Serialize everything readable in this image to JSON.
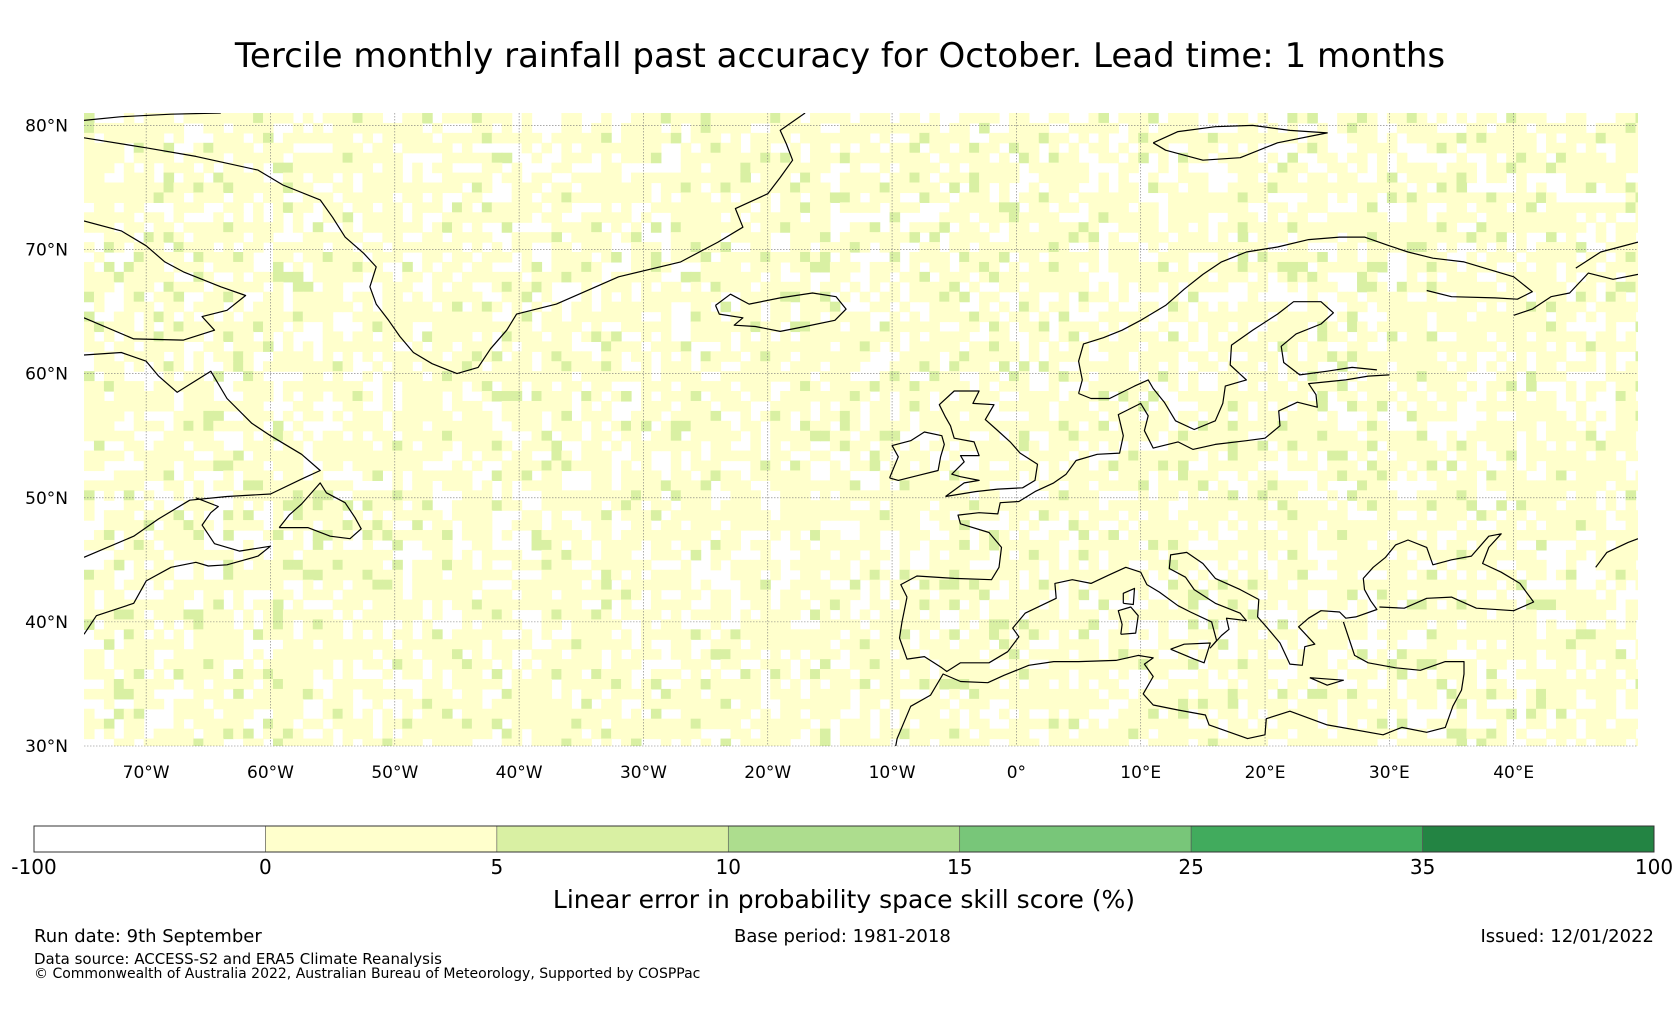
{
  "title": "Tercile monthly rainfall past accuracy for October. Lead time: 1 months",
  "map": {
    "lon_range": [
      -75,
      50
    ],
    "lat_range": [
      30,
      81
    ],
    "lat_ticks": [
      {
        "value": 80,
        "label": "80°N"
      },
      {
        "value": 70,
        "label": "70°N"
      },
      {
        "value": 60,
        "label": "60°N"
      },
      {
        "value": 50,
        "label": "50°N"
      },
      {
        "value": 40,
        "label": "40°N"
      },
      {
        "value": 30,
        "label": "30°N"
      }
    ],
    "lon_ticks": [
      {
        "value": -70,
        "label": "70°W"
      },
      {
        "value": -60,
        "label": "60°W"
      },
      {
        "value": -50,
        "label": "50°W"
      },
      {
        "value": -40,
        "label": "40°W"
      },
      {
        "value": -30,
        "label": "30°W"
      },
      {
        "value": -20,
        "label": "20°W"
      },
      {
        "value": -10,
        "label": "10°W"
      },
      {
        "value": 0,
        "label": "0°"
      },
      {
        "value": 10,
        "label": "10°E"
      },
      {
        "value": 20,
        "label": "20°E"
      },
      {
        "value": 30,
        "label": "30°E"
      },
      {
        "value": 40,
        "label": "40°E"
      }
    ],
    "gridlines": true,
    "coastline_color": "#000000"
  },
  "colorbar": {
    "label": "Linear error in probability space skill score (%)",
    "boundaries": [
      "-100",
      "0",
      "5",
      "10",
      "15",
      "25",
      "35",
      "100"
    ],
    "colors": [
      "#ffffff",
      "#ffffcc",
      "#d9f0a3",
      "#addd8e",
      "#78c679",
      "#41ab5d",
      "#238443"
    ]
  },
  "footer": {
    "run_date": "Run date: 9th September",
    "base_period": "Base period: 1981-2018",
    "issued": "Issued: 12/01/2022",
    "data_source": "Data source: ACCESS-S2 and ERA5 Climate Reanalysis",
    "copyright": "© Commonwealth of Australia 2022, Australian Bureau of Meteorology, Supported by COSPPac"
  }
}
